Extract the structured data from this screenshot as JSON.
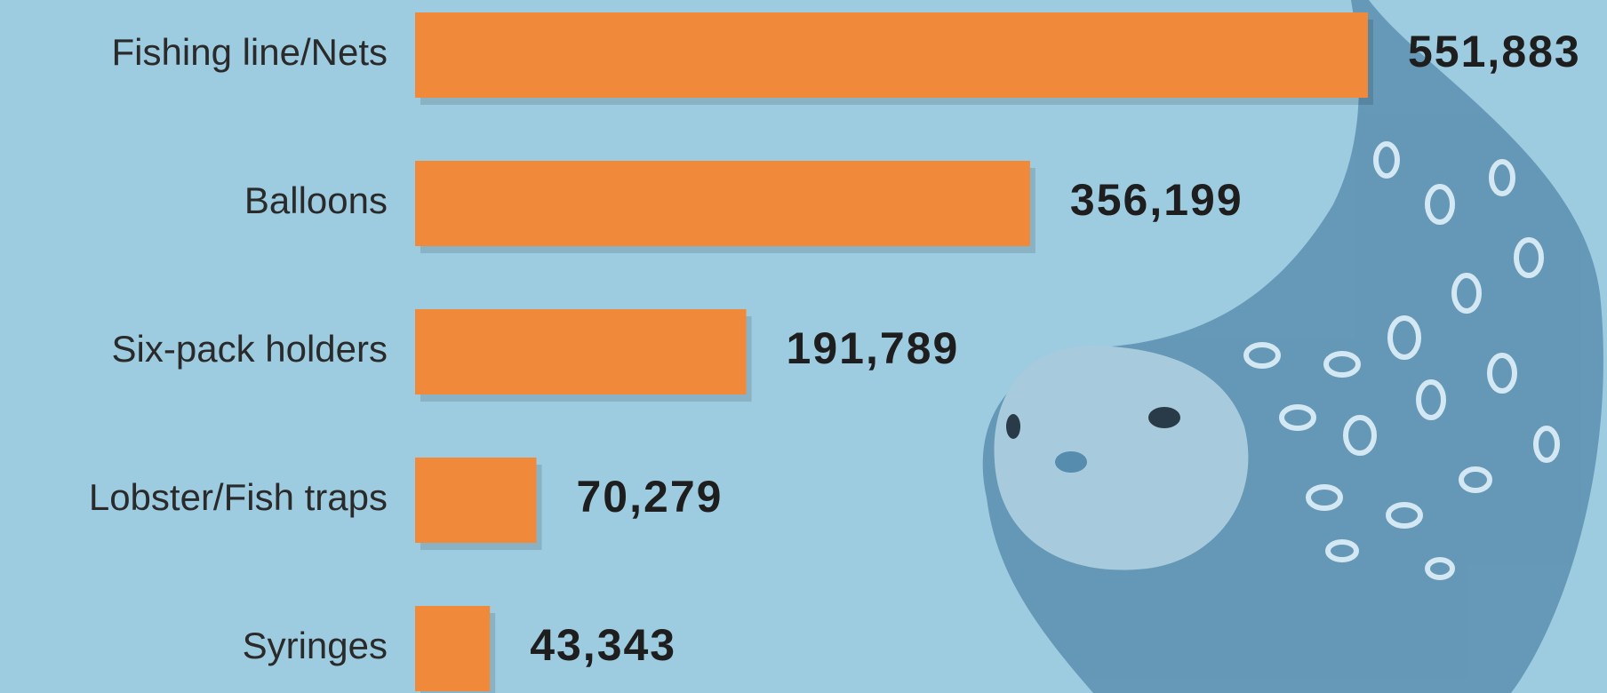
{
  "chart_data": {
    "type": "bar",
    "orientation": "horizontal",
    "categories": [
      "Fishing line/Nets",
      "Balloons",
      "Six-pack holders",
      "Lobster/Fish traps",
      "Syringes"
    ],
    "values": [
      551883,
      356199,
      191789,
      70279,
      43343
    ],
    "value_labels": [
      "551,883",
      "356,199",
      "191,789",
      "70,279",
      "43,343"
    ],
    "color": "#f08a3a"
  }
}
